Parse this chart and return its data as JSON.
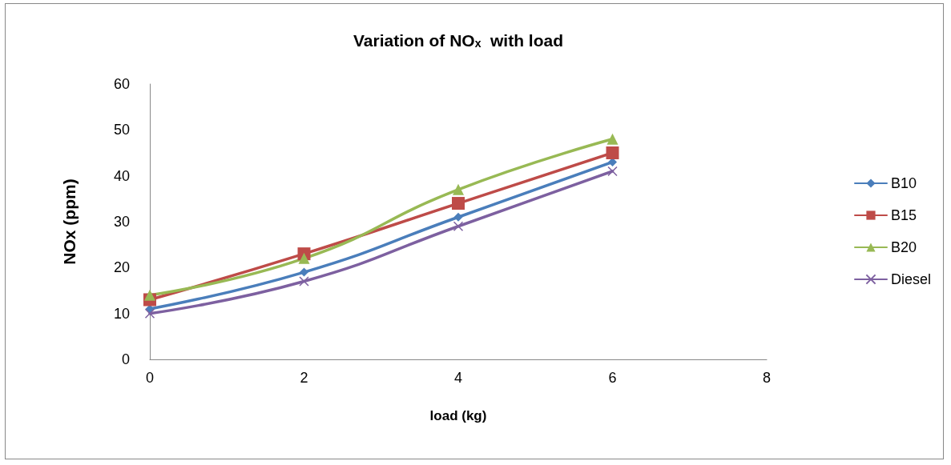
{
  "chart_data": {
    "type": "line",
    "title": "Variation of NOₓ  with load",
    "xlabel": "load (kg)",
    "ylabel": "NOx (ppm)",
    "x": [
      0,
      2,
      4,
      6
    ],
    "xlim": [
      0,
      8
    ],
    "xticks": [
      0,
      2,
      4,
      6,
      8
    ],
    "ylim": [
      0,
      60
    ],
    "yticks": [
      0,
      10,
      20,
      30,
      40,
      50,
      60
    ],
    "grid": false,
    "legend": "right",
    "line_style": "solid",
    "series": [
      {
        "name": "B10",
        "color": "#4a7ebb",
        "marker": "diamond",
        "values": [
          11,
          19,
          31,
          43
        ]
      },
      {
        "name": "B15",
        "color": "#be4b48",
        "marker": "square",
        "values": [
          13,
          23,
          34,
          45
        ]
      },
      {
        "name": "B20",
        "color": "#98b954",
        "marker": "triangle",
        "values": [
          14,
          22,
          37,
          48
        ]
      },
      {
        "name": "Diesel",
        "color": "#7d60a0",
        "marker": "cross",
        "values": [
          10,
          17,
          29,
          41
        ]
      }
    ]
  }
}
